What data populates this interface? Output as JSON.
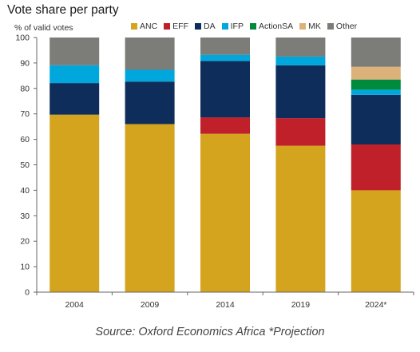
{
  "title": "Vote share per party",
  "source": "Source: Oxford Economics Africa *Projection",
  "chart_data": {
    "type": "bar",
    "stacked": true,
    "title": "Vote share per party",
    "ylabel": "% of valid votes",
    "xlabel": "",
    "ylim": [
      0,
      100
    ],
    "yticks": [
      0,
      10,
      20,
      30,
      40,
      50,
      60,
      70,
      80,
      90,
      100
    ],
    "grid": false,
    "legend_position": "top",
    "categories": [
      "2004",
      "2009",
      "2014",
      "2019",
      "2024*"
    ],
    "series": [
      {
        "name": "ANC",
        "color": "#D4A41F",
        "values": [
          69.7,
          66.0,
          62.2,
          57.5,
          40.0
        ]
      },
      {
        "name": "EFF",
        "color": "#C0202A",
        "values": [
          0,
          0,
          6.4,
          10.8,
          18.0
        ]
      },
      {
        "name": "DA",
        "color": "#0F2D5A",
        "values": [
          12.4,
          16.7,
          22.2,
          20.8,
          19.5
        ]
      },
      {
        "name": "IFP",
        "color": "#00A7DD",
        "values": [
          7.0,
          4.6,
          2.4,
          3.4,
          2.0
        ]
      },
      {
        "name": "ActionSA",
        "color": "#008A3C",
        "values": [
          0,
          0,
          0,
          0,
          4.0
        ]
      },
      {
        "name": "MK",
        "color": "#DDB27A",
        "values": [
          0,
          0,
          0,
          0,
          5.0
        ]
      },
      {
        "name": "Other",
        "color": "#7C7C78",
        "values": [
          10.9,
          12.7,
          6.8,
          7.5,
          11.5
        ]
      }
    ]
  }
}
